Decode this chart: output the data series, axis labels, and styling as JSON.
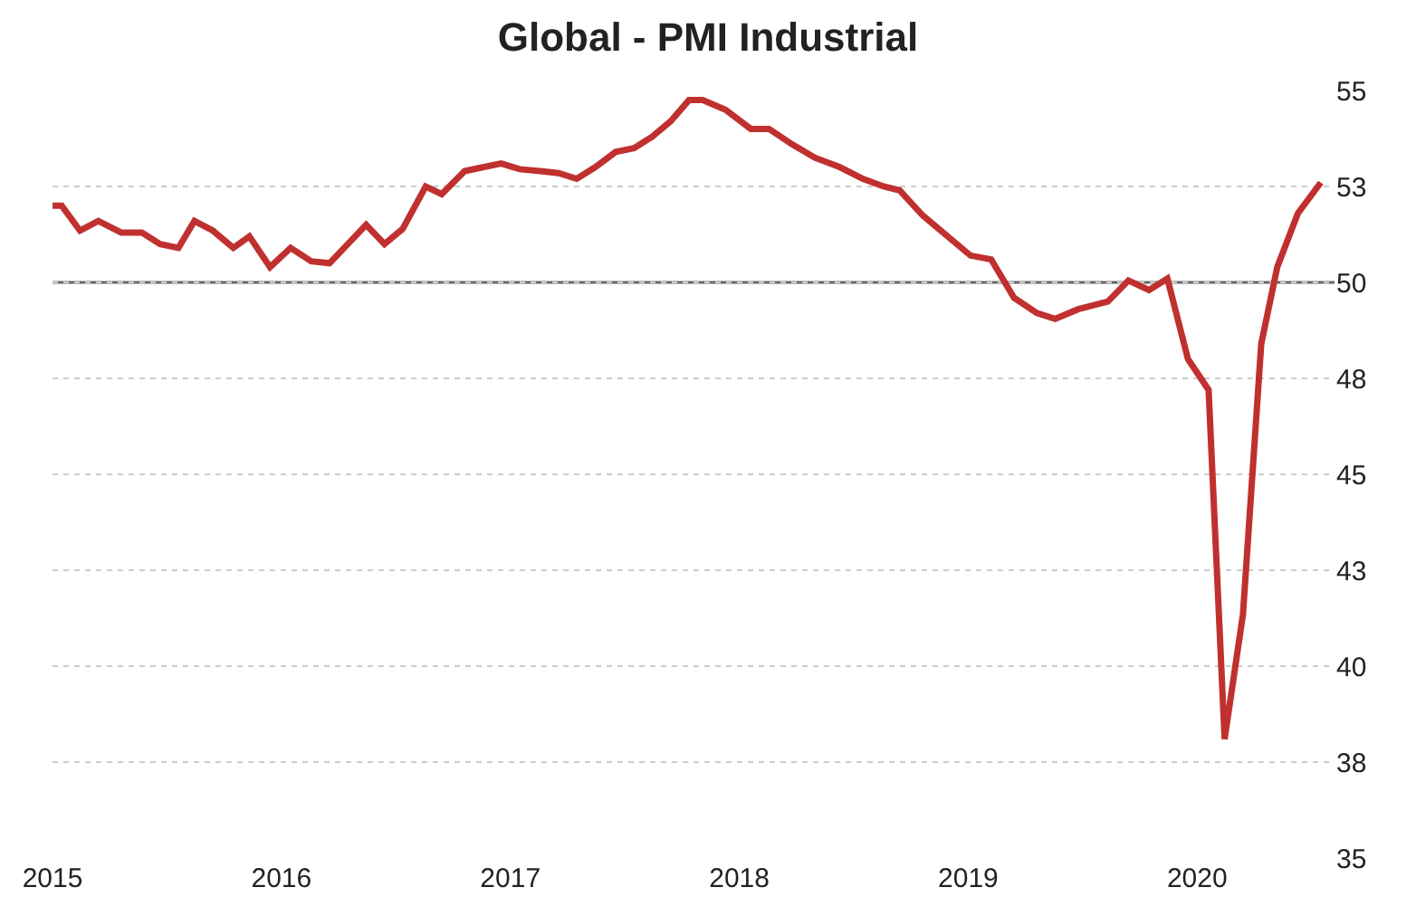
{
  "chart_data": {
    "type": "line",
    "title": "Global - PMI Industrial",
    "x": [
      2015.0,
      2015.04,
      2015.12,
      2015.2,
      2015.3,
      2015.39,
      2015.47,
      2015.55,
      2015.62,
      2015.7,
      2015.79,
      2015.86,
      2015.95,
      2016.04,
      2016.13,
      2016.21,
      2016.29,
      2016.37,
      2016.45,
      2016.53,
      2016.63,
      2016.7,
      2016.8,
      2016.88,
      2016.96,
      2017.04,
      2017.13,
      2017.21,
      2017.29,
      2017.37,
      2017.46,
      2017.54,
      2017.62,
      2017.7,
      2017.78,
      2017.84,
      2017.94,
      2018.05,
      2018.13,
      2018.23,
      2018.33,
      2018.44,
      2018.54,
      2018.63,
      2018.7,
      2018.8,
      2018.91,
      2019.01,
      2019.1,
      2019.2,
      2019.3,
      2019.38,
      2019.48,
      2019.61,
      2019.7,
      2019.79,
      2019.87,
      2019.96,
      2020.05,
      2020.12,
      2020.2,
      2020.28,
      2020.35,
      2020.44,
      2020.54
    ],
    "series": [
      {
        "color": "#c0302f",
        "values": [
          52.0,
          52.0,
          51.35,
          51.6,
          51.3,
          51.3,
          51.0,
          50.9,
          51.6,
          51.35,
          50.9,
          51.2,
          50.4,
          50.9,
          50.55,
          50.5,
          51.0,
          51.5,
          51.0,
          51.4,
          52.5,
          52.3,
          52.9,
          53.0,
          53.1,
          52.95,
          52.9,
          52.85,
          52.7,
          53.0,
          53.4,
          53.5,
          53.8,
          54.2,
          54.75,
          54.75,
          54.5,
          54.0,
          54.0,
          53.6,
          53.25,
          53.0,
          52.7,
          52.5,
          52.4,
          51.75,
          51.2,
          50.7,
          50.6,
          49.6,
          49.2,
          49.05,
          49.3,
          49.5,
          50.05,
          49.8,
          50.1,
          48.0,
          47.2,
          38.1,
          41.35,
          48.4,
          50.4,
          51.8,
          52.6
        ]
      }
    ],
    "xlim": [
      2015,
      2020.6
    ],
    "xticks": [
      2015,
      2016,
      2017,
      2018,
      2019,
      2020
    ],
    "ylim": [
      35,
      55
    ],
    "yticks": [
      {
        "value": 35,
        "label": "35"
      },
      {
        "value": 37.5,
        "label": "38"
      },
      {
        "value": 40,
        "label": "40"
      },
      {
        "value": 42.5,
        "label": "43"
      },
      {
        "value": 45,
        "label": "45"
      },
      {
        "value": 47.5,
        "label": "48"
      },
      {
        "value": 50,
        "label": "50"
      },
      {
        "value": 52.5,
        "label": "53"
      },
      {
        "value": 55,
        "label": "55"
      }
    ],
    "ref_lines": [
      {
        "axis": "y",
        "value": 50,
        "color": "#666666"
      }
    ],
    "grid": "y",
    "legend": false,
    "marker": "none",
    "line_style": "solid"
  }
}
